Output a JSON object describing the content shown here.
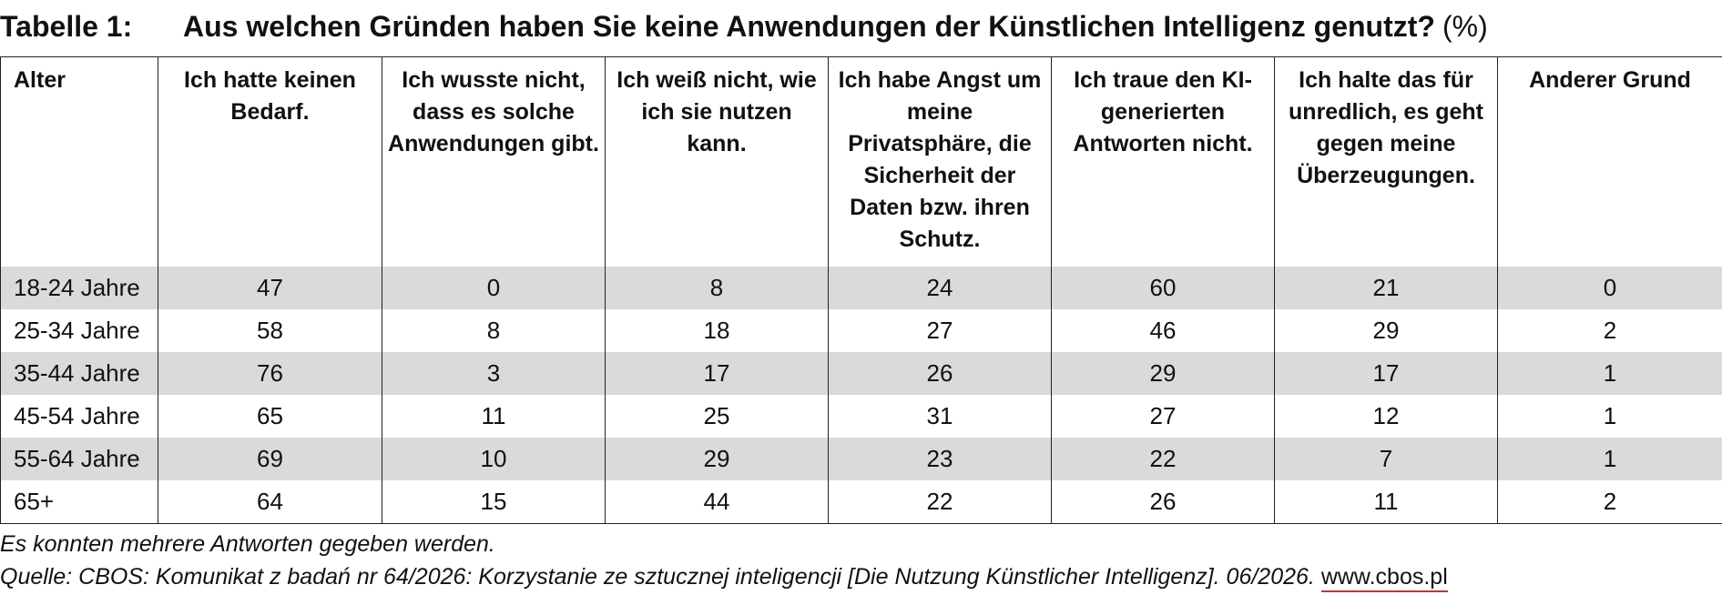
{
  "title": {
    "label": "Tabelle 1:",
    "text": "Aus welchen Gründen haben Sie keine Anwendungen der Künstlichen Intelligenz genutzt?",
    "suffix": "(%)"
  },
  "table": {
    "headers": [
      "Alter",
      "Ich hatte keinen Bedarf.",
      "Ich wusste nicht, dass es solche Anwendungen gibt.",
      "Ich weiß nicht, wie ich sie nutzen kann.",
      "Ich habe Angst um meine Privatsphäre, die Sicherheit der Daten bzw. ihren Schutz.",
      "Ich traue den KI-generierten Antworten nicht.",
      "Ich halte das für unredlich, es geht gegen meine Überzeugungen.",
      "Anderer Grund"
    ],
    "rows": [
      [
        "18-24 Jahre",
        "47",
        "0",
        "8",
        "24",
        "60",
        "21",
        "0"
      ],
      [
        "25-34 Jahre",
        "58",
        "8",
        "18",
        "27",
        "46",
        "29",
        "2"
      ],
      [
        "35-44 Jahre",
        "76",
        "3",
        "17",
        "26",
        "29",
        "17",
        "1"
      ],
      [
        "45-54 Jahre",
        "65",
        "11",
        "25",
        "31",
        "27",
        "12",
        "1"
      ],
      [
        "55-64 Jahre",
        "69",
        "10",
        "29",
        "23",
        "22",
        "7",
        "1"
      ],
      [
        "65+",
        "64",
        "15",
        "44",
        "22",
        "26",
        "11",
        "2"
      ]
    ]
  },
  "footer": {
    "note": "Es konnten mehrere Antworten gegeben werden.",
    "source": "Quelle: CBOS: Komunikat z badań nr 64/2026: Korzystanie ze sztucznej inteligencji [Die Nutzung Künstlicher Intelligenz]. 06/2026.",
    "link": "www.cbos.pl"
  },
  "colors": {
    "row_shade": "#dadada",
    "border": "#222222",
    "link_underline": "#c0392b"
  }
}
